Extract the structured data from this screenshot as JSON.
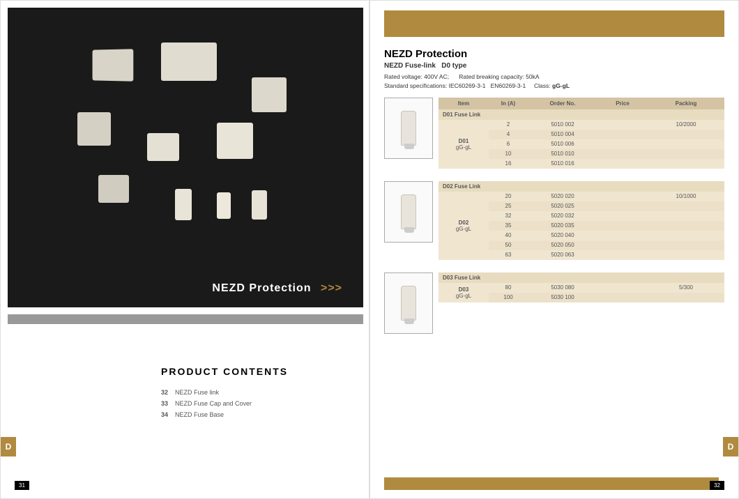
{
  "leftPage": {
    "heroTitle": "NEZD Protection",
    "heroArrows": ">>>",
    "contentsTitle": "PRODUCT  CONTENTS",
    "contents": [
      {
        "num": "32",
        "text": "NEZD Fuse link"
      },
      {
        "num": "33",
        "text": "NEZD Fuse Cap and Cover"
      },
      {
        "num": "34",
        "text": "NEZD Fuse Base"
      }
    ],
    "tab": "D",
    "pageNum": "31"
  },
  "rightPage": {
    "title": "NEZD Protection",
    "subtitle": "NEZD Fuse-link   D0 type",
    "spec1a": "Rated voltage: 400V AC;",
    "spec1b": "Rated breaking capacity: 50kA",
    "spec2a": "Standard specifications: IEC60269-3-1   EN60269-3-1",
    "spec2b": "Class:",
    "spec2c": "gG-gL",
    "cols": {
      "c1": "Item",
      "c2": "In (A)",
      "c3": "Order No.",
      "c4": "Price",
      "c5": "Packing"
    },
    "blocks": [
      {
        "title": "D01 Fuse Link",
        "label": "D01",
        "labelSub": "gG-gL",
        "packing": "10/2000",
        "rows": [
          {
            "in": "2",
            "order": "5010 002"
          },
          {
            "in": "4",
            "order": "5010 004"
          },
          {
            "in": "6",
            "order": "5010 006"
          },
          {
            "in": "10",
            "order": "5010 010"
          },
          {
            "in": "16",
            "order": "5010 016"
          }
        ]
      },
      {
        "title": "D02 Fuse Link",
        "label": "D02",
        "labelSub": "gG-gL",
        "packing": "10/1000",
        "rows": [
          {
            "in": "20",
            "order": "5020 020"
          },
          {
            "in": "25",
            "order": "5020 025"
          },
          {
            "in": "32",
            "order": "5020 032"
          },
          {
            "in": "35",
            "order": "5020 035"
          },
          {
            "in": "40",
            "order": "5020 040"
          },
          {
            "in": "50",
            "order": "5020 050"
          },
          {
            "in": "63",
            "order": "5020 063"
          }
        ]
      },
      {
        "title": "D03 Fuse Link",
        "label": "D03",
        "labelSub": "gG-gL",
        "packing": "5/300",
        "rows": [
          {
            "in": "80",
            "order": "5030 080"
          },
          {
            "in": "100",
            "order": "5030 100"
          }
        ]
      }
    ],
    "tab": "D",
    "pageNum": "32"
  },
  "colors": {
    "gold": "#b08a3e",
    "tableHeader": "#d4c4a4",
    "tableSubHeader": "#e8dcc0",
    "tableRow": "#f0e6d0",
    "tableRowAlt": "#ece0c8",
    "heroBg": "#1a1a1a"
  }
}
